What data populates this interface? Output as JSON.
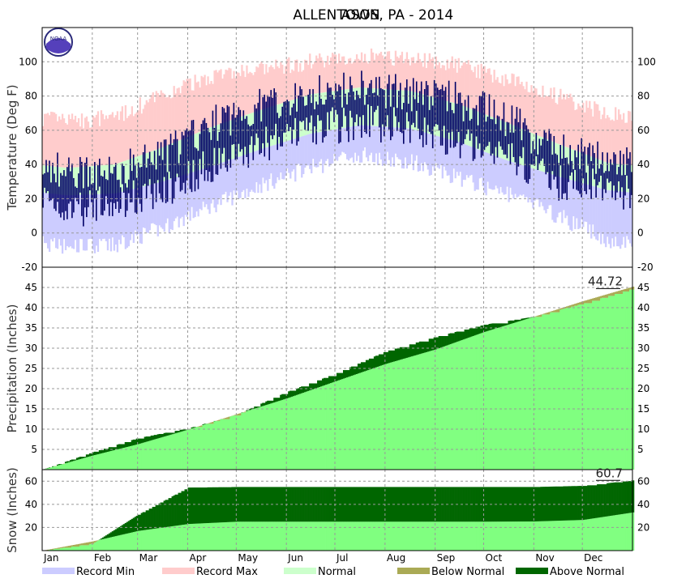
{
  "chart_data": {
    "type": "area",
    "station": "ALLENTOWN",
    "network_label": "ASOS, PA - 2014",
    "months": [
      "Jan",
      "Feb",
      "Mar",
      "Apr",
      "May",
      "Jun",
      "Jul",
      "Aug",
      "Sep",
      "Oct",
      "Nov",
      "Dec"
    ],
    "logo_text": "NOAA",
    "colors": {
      "record_min": "#ccccff",
      "record_max": "#ffcccc",
      "normal": "#ccffcc",
      "observed": "#000066",
      "below_normal": "#aaaa55",
      "above_normal": "#006600",
      "normal_precip": "#80ff80"
    },
    "panels": [
      {
        "id": "temperature",
        "ylabel": "Temperature (Deg F)",
        "ylim": [
          -20,
          120
        ],
        "yticks": [
          -20,
          0,
          20,
          40,
          60,
          80,
          100
        ],
        "monthly_summary": [
          {
            "month": "Jan",
            "record_max": 65,
            "normal_high": 38,
            "normal_low": 22,
            "record_min": -8,
            "obs_high_typ": 36,
            "obs_low_typ": 14
          },
          {
            "month": "Feb",
            "record_max": 68,
            "normal_high": 40,
            "normal_low": 23,
            "record_min": -7,
            "obs_high_typ": 35,
            "obs_low_typ": 17
          },
          {
            "month": "Mar",
            "record_max": 80,
            "normal_high": 50,
            "normal_low": 30,
            "record_min": 3,
            "obs_high_typ": 45,
            "obs_low_typ": 25
          },
          {
            "month": "Apr",
            "record_max": 92,
            "normal_high": 62,
            "normal_low": 39,
            "record_min": 16,
            "obs_high_typ": 63,
            "obs_low_typ": 40
          },
          {
            "month": "May",
            "record_max": 95,
            "normal_high": 72,
            "normal_low": 49,
            "record_min": 28,
            "obs_high_typ": 74,
            "obs_low_typ": 51
          },
          {
            "month": "Jun",
            "record_max": 100,
            "normal_high": 81,
            "normal_low": 58,
            "record_min": 38,
            "obs_high_typ": 83,
            "obs_low_typ": 61
          },
          {
            "month": "Jul",
            "record_max": 104,
            "normal_high": 85,
            "normal_low": 63,
            "record_min": 46,
            "obs_high_typ": 85,
            "obs_low_typ": 65
          },
          {
            "month": "Aug",
            "record_max": 102,
            "normal_high": 83,
            "normal_low": 61,
            "record_min": 42,
            "obs_high_typ": 82,
            "obs_low_typ": 62
          },
          {
            "month": "Sep",
            "record_max": 98,
            "normal_high": 75,
            "normal_low": 53,
            "record_min": 32,
            "obs_high_typ": 77,
            "obs_low_typ": 55
          },
          {
            "month": "Oct",
            "record_max": 90,
            "normal_high": 64,
            "normal_low": 42,
            "record_min": 22,
            "obs_high_typ": 66,
            "obs_low_typ": 46
          },
          {
            "month": "Nov",
            "record_max": 80,
            "normal_high": 52,
            "normal_low": 33,
            "record_min": 10,
            "obs_high_typ": 47,
            "obs_low_typ": 30
          },
          {
            "month": "Dec",
            "record_max": 70,
            "normal_high": 41,
            "normal_low": 25,
            "record_min": -4,
            "obs_high_typ": 42,
            "obs_low_typ": 29
          }
        ]
      },
      {
        "id": "precipitation",
        "ylabel": "Precipitation (Inches)",
        "ylim": [
          0,
          50
        ],
        "yticks": [
          5,
          10,
          15,
          20,
          25,
          30,
          35,
          40,
          45
        ],
        "annual_total": "44.72",
        "cumulative_month_end": {
          "months": [
            "Jan",
            "Feb",
            "Mar",
            "Apr",
            "May",
            "Jun",
            "Jul",
            "Aug",
            "Sep",
            "Oct",
            "Nov",
            "Dec"
          ],
          "observed": [
            4.3,
            7.8,
            10.2,
            13.6,
            19.2,
            23.7,
            29.2,
            32.8,
            35.8,
            37.8,
            41.0,
            44.72
          ],
          "normal": [
            3.5,
            6.3,
            9.9,
            13.7,
            17.6,
            21.8,
            26.1,
            29.7,
            34.0,
            37.8,
            41.6,
            45.2
          ]
        }
      },
      {
        "id": "snow",
        "ylabel": "Snow (Inches)",
        "ylim": [
          0,
          70
        ],
        "yticks": [
          20,
          40,
          60
        ],
        "annual_total": "60.7",
        "cumulative_month_end": {
          "months": [
            "Jan",
            "Feb",
            "Mar",
            "Apr",
            "May",
            "Jun",
            "Jul",
            "Aug",
            "Sep",
            "Oct",
            "Nov",
            "Dec"
          ],
          "observed": [
            6.0,
            31.0,
            54.5,
            55.0,
            55.0,
            55.0,
            55.0,
            55.0,
            55.0,
            55.0,
            56.0,
            60.7
          ],
          "normal": [
            8.0,
            17.0,
            23.0,
            25.0,
            25.0,
            25.0,
            25.0,
            25.0,
            25.0,
            25.2,
            26.5,
            33.0
          ]
        }
      }
    ],
    "legend": [
      {
        "label": "Record Min",
        "color": "#ccccff"
      },
      {
        "label": "Record Max",
        "color": "#ffcccc"
      },
      {
        "label": "Normal",
        "color": "#ccffcc"
      },
      {
        "label": "Below Normal",
        "color": "#aaaa55"
      },
      {
        "label": "Above Normal",
        "color": "#006600"
      }
    ],
    "grid": true
  }
}
